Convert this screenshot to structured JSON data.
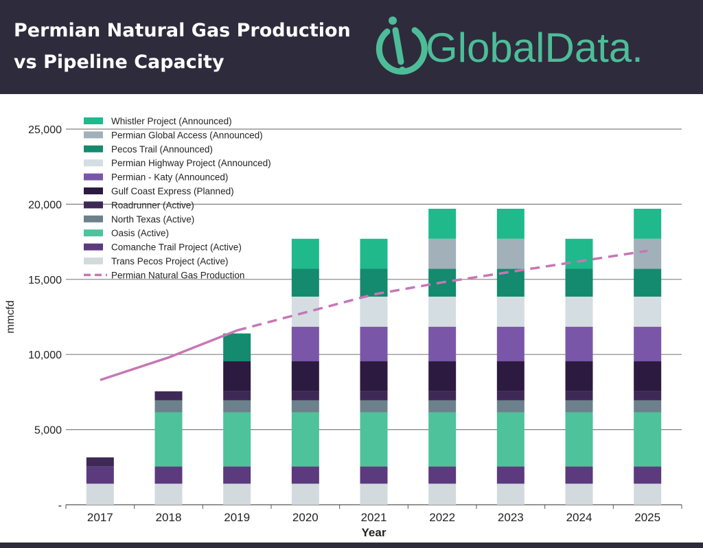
{
  "header": {
    "title_line1": "Permian Natural Gas Production",
    "title_line2": "vs Pipeline Capacity",
    "logo_text": "GlobalData."
  },
  "colors": {
    "header_bg": "#2e2b3c",
    "logo": "#4dbd98",
    "production_line": "#c776b5"
  },
  "chart_data": {
    "type": "bar",
    "stacked": true,
    "categories": [
      "2017",
      "2018",
      "2019",
      "2020",
      "2021",
      "2022",
      "2023",
      "2024",
      "2025"
    ],
    "xlabel": "Year",
    "ylabel": "mmcfd",
    "ylim": [
      0,
      25000
    ],
    "yticks": [
      0,
      5000,
      10000,
      15000,
      20000,
      25000
    ],
    "ytick_labels": [
      "-",
      "5,000",
      "10,000",
      "15,000",
      "20,000",
      "25,000"
    ],
    "grid": true,
    "legend_position": "top-left",
    "series": [
      {
        "name": "Trans Pecos Project (Active)",
        "color": "#d3dadd",
        "values": [
          1400,
          1400,
          1400,
          1400,
          1400,
          1400,
          1400,
          1400,
          1400
        ]
      },
      {
        "name": "Comanche Trail Project (Active)",
        "color": "#5b3a7e",
        "values": [
          1150,
          1150,
          1150,
          1150,
          1150,
          1150,
          1150,
          1150,
          1150
        ]
      },
      {
        "name": "Oasis (Active)",
        "color": "#4dc29b",
        "values": [
          0,
          3600,
          3600,
          3600,
          3600,
          3600,
          3600,
          3600,
          3600
        ]
      },
      {
        "name": "North Texas (Active)",
        "color": "#6c818b",
        "values": [
          0,
          800,
          800,
          800,
          800,
          800,
          800,
          800,
          800
        ]
      },
      {
        "name": "Roadrunner (Active)",
        "color": "#3e2956",
        "values": [
          600,
          600,
          600,
          600,
          600,
          600,
          600,
          600,
          600
        ]
      },
      {
        "name": "Gulf Coast Express (Planned)",
        "color": "#2d1a40",
        "values": [
          0,
          0,
          2000,
          2000,
          2000,
          2000,
          2000,
          2000,
          2000
        ]
      },
      {
        "name": "Permian - Katy (Announced)",
        "color": "#7a56a9",
        "values": [
          0,
          0,
          0,
          2300,
          2300,
          2300,
          2300,
          2300,
          2300
        ]
      },
      {
        "name": "Permian Highway Project (Announced)",
        "color": "#d4dde1",
        "values": [
          0,
          0,
          0,
          2000,
          2000,
          2000,
          2000,
          2000,
          2000
        ]
      },
      {
        "name": "Pecos Trail (Announced)",
        "color": "#148a6e",
        "values": [
          0,
          0,
          1850,
          1850,
          1850,
          1850,
          1850,
          1850,
          1850
        ]
      },
      {
        "name": "Permian Global Access (Announced)",
        "color": "#a2b1b9",
        "values": [
          0,
          0,
          0,
          0,
          0,
          2000,
          2000,
          0,
          2000
        ]
      },
      {
        "name": "Whistler Project (Announced)",
        "color": "#1fb98c",
        "values": [
          0,
          0,
          0,
          2000,
          2000,
          2000,
          2000,
          2000,
          2000
        ]
      }
    ],
    "line": {
      "name": "Permian Natural Gas Production",
      "color": "#c776b5",
      "values": [
        8300,
        9800,
        11600,
        12800,
        14000,
        14800,
        15500,
        16200,
        16900
      ],
      "dashed_from": "2019"
    }
  }
}
